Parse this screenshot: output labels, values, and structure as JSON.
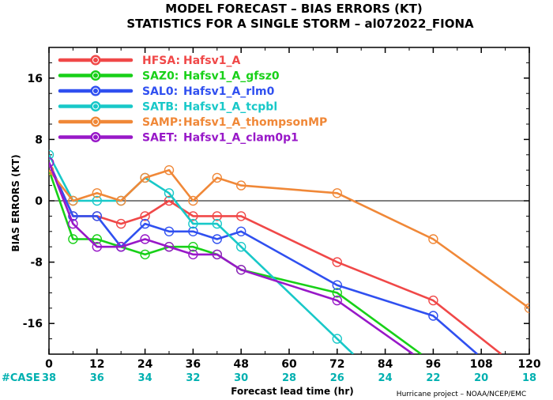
{
  "chart_data": {
    "type": "line",
    "title": "MODEL FORECAST – BIAS ERRORS (KT)",
    "subtitle": "STATISTICS FOR A SINGLE STORM – al072022_FIONA",
    "xlabel": "Forecast lead time (hr)",
    "ylabel": "BIAS ERRORS (KT)",
    "xlim": [
      0,
      120
    ],
    "ylim": [
      -20,
      20
    ],
    "x_ticks": [
      "0",
      "12",
      "24",
      "36",
      "48",
      "60",
      "72",
      "84",
      "96",
      "108",
      "120"
    ],
    "y_ticks": [
      "16",
      "8",
      "0",
      "-8",
      "-16"
    ],
    "x_tick_values": [
      0,
      12,
      24,
      36,
      48,
      60,
      72,
      84,
      96,
      108,
      120
    ],
    "y_tick_values": [
      16,
      8,
      0,
      -8,
      -16
    ],
    "zero_line": true,
    "legend_position": "top-left",
    "case_label": "#CASE",
    "case_counts": [
      {
        "x": 0,
        "n": "38"
      },
      {
        "x": 12,
        "n": "36"
      },
      {
        "x": 24,
        "n": "34"
      },
      {
        "x": 36,
        "n": "32"
      },
      {
        "x": 48,
        "n": "30"
      },
      {
        "x": 60,
        "n": "28"
      },
      {
        "x": 72,
        "n": "26"
      },
      {
        "x": 84,
        "n": "24"
      },
      {
        "x": 96,
        "n": "22"
      },
      {
        "x": 108,
        "n": "20"
      },
      {
        "x": 120,
        "n": "18"
      }
    ],
    "series": [
      {
        "name": "HFSA:",
        "label": "Hafsv1_A",
        "color": "#f04848",
        "points": [
          [
            0,
            5
          ],
          [
            6,
            -2
          ],
          [
            12,
            -2
          ],
          [
            18,
            -3
          ],
          [
            24,
            -2
          ],
          [
            30,
            0
          ],
          [
            36,
            -2
          ],
          [
            42,
            -2
          ],
          [
            48,
            -2
          ],
          [
            72,
            -8
          ],
          [
            96,
            -13
          ],
          [
            113,
            -20
          ]
        ],
        "markers": [
          0,
          6,
          12,
          18,
          24,
          30,
          36,
          42,
          48,
          72,
          96
        ]
      },
      {
        "name": "SAZ0:",
        "label": "Hafsv1_A_gfsz0",
        "color": "#18d018",
        "points": [
          [
            0,
            4
          ],
          [
            6,
            -5
          ],
          [
            12,
            -5
          ],
          [
            18,
            -6
          ],
          [
            24,
            -7
          ],
          [
            30,
            -6
          ],
          [
            36,
            -6
          ],
          [
            42,
            -7
          ],
          [
            48,
            -9
          ],
          [
            72,
            -12
          ],
          [
            93,
            -20
          ]
        ],
        "markers": [
          0,
          6,
          12,
          18,
          24,
          30,
          36,
          42,
          48,
          72
        ]
      },
      {
        "name": "SAL0:",
        "label": "Hafsv1_A_rlm0",
        "color": "#3050f0",
        "points": [
          [
            0,
            5
          ],
          [
            6,
            -2
          ],
          [
            12,
            -2
          ],
          [
            18,
            -6
          ],
          [
            24,
            -3
          ],
          [
            30,
            -4
          ],
          [
            36,
            -4
          ],
          [
            42,
            -5
          ],
          [
            48,
            -4
          ],
          [
            72,
            -11
          ],
          [
            96,
            -15
          ],
          [
            107,
            -20
          ]
        ],
        "markers": [
          0,
          6,
          12,
          18,
          24,
          30,
          36,
          42,
          48,
          72,
          96
        ]
      },
      {
        "name": "SATB:",
        "label": "Hafsv1_A_tcpbl",
        "color": "#18c8c8",
        "points": [
          [
            0,
            6
          ],
          [
            6,
            0
          ],
          [
            12,
            0
          ],
          [
            18,
            0
          ],
          [
            24,
            3
          ],
          [
            30,
            1
          ],
          [
            36,
            -3
          ],
          [
            42,
            -3
          ],
          [
            48,
            -6
          ],
          [
            72,
            -18
          ],
          [
            76,
            -20
          ]
        ],
        "markers": [
          0,
          6,
          12,
          18,
          24,
          30,
          36,
          42,
          48,
          72
        ]
      },
      {
        "name": "SAMP:",
        "label": "Hafsv1_A_thompsonMP",
        "color": "#f08838",
        "points": [
          [
            0,
            4
          ],
          [
            6,
            0
          ],
          [
            12,
            1
          ],
          [
            18,
            0
          ],
          [
            24,
            3
          ],
          [
            30,
            4
          ],
          [
            36,
            0
          ],
          [
            42,
            3
          ],
          [
            48,
            2
          ],
          [
            72,
            1
          ],
          [
            96,
            -5
          ],
          [
            120,
            -14
          ]
        ],
        "markers": [
          0,
          6,
          12,
          18,
          24,
          30,
          36,
          42,
          48,
          72,
          96,
          120
        ]
      },
      {
        "name": "SAET:",
        "label": "Hafsv1_A_clam0p1",
        "color": "#9818c8",
        "points": [
          [
            0,
            5
          ],
          [
            6,
            -3
          ],
          [
            12,
            -6
          ],
          [
            18,
            -6
          ],
          [
            24,
            -5
          ],
          [
            30,
            -6
          ],
          [
            36,
            -7
          ],
          [
            42,
            -7
          ],
          [
            48,
            -9
          ],
          [
            72,
            -13
          ],
          [
            91,
            -20
          ]
        ],
        "markers": [
          0,
          6,
          12,
          18,
          24,
          30,
          36,
          42,
          48,
          72
        ]
      }
    ]
  },
  "footer": {
    "credit": "Hurricane project – NOAA/NCEP/EMC"
  }
}
